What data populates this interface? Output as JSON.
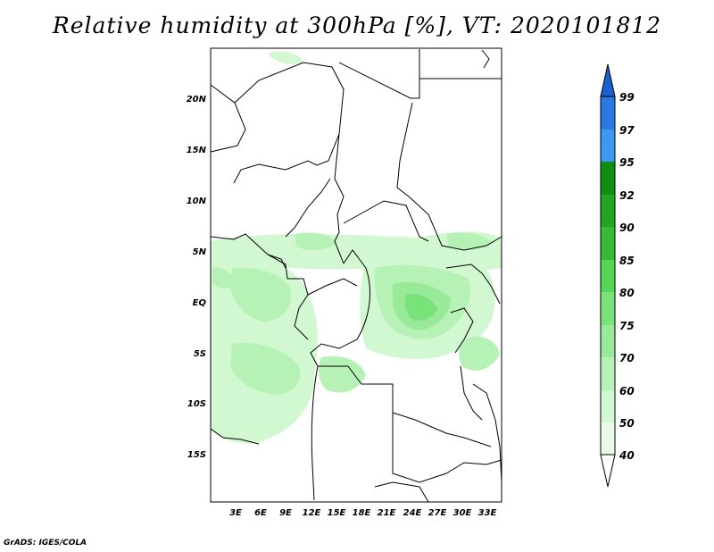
{
  "title": "Relative humidity at 300hPa [%], VT: 2020101812",
  "credit": "GrADS: IGES/COLA",
  "lat_labels": [
    "20N",
    "15N",
    "10N",
    "5N",
    "EQ",
    "5S",
    "10S",
    "15S"
  ],
  "lon_labels": [
    "3E",
    "6E",
    "9E",
    "12E",
    "15E",
    "18E",
    "21E",
    "24E",
    "27E",
    "30E",
    "33E"
  ],
  "colorbar": {
    "levels": [
      "99",
      "97",
      "95",
      "92",
      "90",
      "85",
      "80",
      "75",
      "70",
      "60",
      "50",
      "40"
    ],
    "colors": [
      "#1c5fd0",
      "#2a78e2",
      "#3c98f0",
      "#0f8f12",
      "#22a622",
      "#37bb37",
      "#55d655",
      "#79e279",
      "#98ea98",
      "#b6f2b6",
      "#d2f8d2",
      "#e9fce9"
    ]
  }
}
